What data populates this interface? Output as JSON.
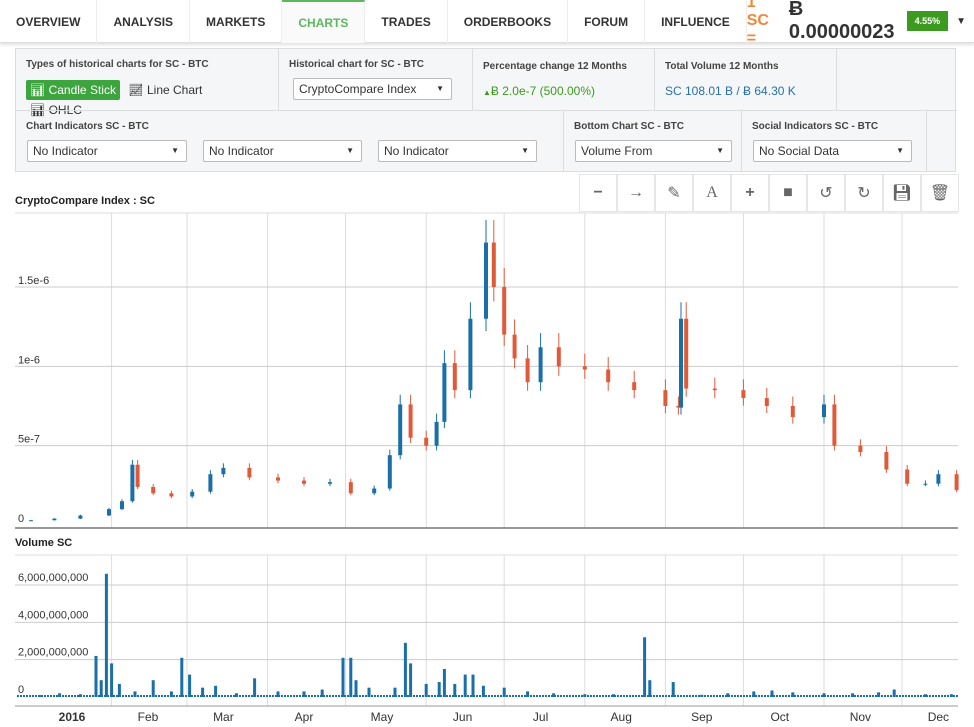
{
  "nav": {
    "tabs": [
      "OVERVIEW",
      "ANALYSIS",
      "MARKETS",
      "CHARTS",
      "TRADES",
      "ORDERBOOKS",
      "FORUM",
      "INFLUENCE"
    ],
    "active": "CHARTS",
    "price_label": "1 SC =",
    "price_value": "Ƀ 0.00000023",
    "change_badge": "4.55%",
    "badge_color": "#3c9a1e"
  },
  "panel": {
    "types_title": "Types of historical charts for SC - BTC",
    "candle": "Candle Stick",
    "line": "Line Chart",
    "ohlc": "OHLC",
    "hist_title": "Historical chart for SC - BTC",
    "hist_value": "CryptoCompare Index",
    "pct_title": "Percentage change 12 Months",
    "pct_value": "Ƀ 2.0e-7 (500.00%)",
    "vol_title": "Total Volume 12 Months",
    "vol_value": "SC 108.01 B / Ƀ 64.30 K",
    "ind_title": "Chart Indicators SC - BTC",
    "ind1": "No Indicator",
    "ind2": "No Indicator",
    "ind3": "No Indicator",
    "bottom_title": "Bottom Chart SC - BTC",
    "bottom_value": "Volume From",
    "social_title": "Social Indicators SC - BTC",
    "social_value": "No Social Data"
  },
  "toolbar": [
    "minus-icon",
    "arrow-right-icon",
    "pencil-icon",
    "text-icon",
    "plus-icon",
    "square-icon",
    "undo-icon",
    "redo-icon",
    "save-icon",
    "trash-icon"
  ],
  "chart_data": [
    {
      "type": "candlestick",
      "title": "CryptoCompare Index : SC",
      "ylim": [
        0,
        1.95e-06
      ],
      "yticks": [
        "0",
        "5e-7",
        "1e-6",
        "1.5e-6"
      ],
      "ytick_values": [
        0,
        5e-07,
        1e-06,
        1.5e-06
      ],
      "up_color": "#1a6fa8",
      "down_color": "#e05a3a",
      "close": [
        [
          "2016-01-01",
          3e-08
        ],
        [
          "2016-01-10",
          4e-08
        ],
        [
          "2016-01-20",
          6e-08
        ],
        [
          "2016-01-31",
          1e-07
        ],
        [
          "2016-02-05",
          1.5e-07
        ],
        [
          "2016-02-09",
          3.8e-07
        ],
        [
          "2016-02-11",
          2.4e-07
        ],
        [
          "2016-02-17",
          2e-07
        ],
        [
          "2016-02-24",
          1.8e-07
        ],
        [
          "2016-03-03",
          2.1e-07
        ],
        [
          "2016-03-10",
          3.2e-07
        ],
        [
          "2016-03-15",
          3.6e-07
        ],
        [
          "2016-03-25",
          3e-07
        ],
        [
          "2016-04-05",
          2.8e-07
        ],
        [
          "2016-04-15",
          2.6e-07
        ],
        [
          "2016-04-25",
          2.7e-07
        ],
        [
          "2016-05-03",
          2e-07
        ],
        [
          "2016-05-12",
          2.3e-07
        ],
        [
          "2016-05-18",
          4.4e-07
        ],
        [
          "2016-05-22",
          7.6e-07
        ],
        [
          "2016-05-26",
          5.5e-07
        ],
        [
          "2016-06-01",
          5e-07
        ],
        [
          "2016-06-05",
          6.5e-07
        ],
        [
          "2016-06-08",
          1.02e-06
        ],
        [
          "2016-06-12",
          8.5e-07
        ],
        [
          "2016-06-18",
          1.3e-06
        ],
        [
          "2016-06-24",
          1.78e-06
        ],
        [
          "2016-06-27",
          1.5e-06
        ],
        [
          "2016-07-01",
          1.2e-06
        ],
        [
          "2016-07-05",
          1.05e-06
        ],
        [
          "2016-07-10",
          9e-07
        ],
        [
          "2016-07-15",
          1.12e-06
        ],
        [
          "2016-07-22",
          1e-06
        ],
        [
          "2016-08-01",
          9.8e-07
        ],
        [
          "2016-08-10",
          9e-07
        ],
        [
          "2016-08-20",
          8.5e-07
        ],
        [
          "2016-09-01",
          7.5e-07
        ],
        [
          "2016-09-06",
          7.4e-07
        ],
        [
          "2016-09-07",
          1.3e-06
        ],
        [
          "2016-09-09",
          8.6e-07
        ],
        [
          "2016-09-20",
          8.5e-07
        ],
        [
          "2016-10-01",
          8e-07
        ],
        [
          "2016-10-10",
          7.5e-07
        ],
        [
          "2016-10-20",
          6.8e-07
        ],
        [
          "2016-11-01",
          7.6e-07
        ],
        [
          "2016-11-05",
          5e-07
        ],
        [
          "2016-11-15",
          4.6e-07
        ],
        [
          "2016-11-25",
          3.5e-07
        ],
        [
          "2016-12-03",
          2.6e-07
        ],
        [
          "2016-12-10",
          2.6e-07
        ],
        [
          "2016-12-15",
          3.2e-07
        ],
        [
          "2016-12-22",
          2.2e-07
        ]
      ]
    },
    {
      "type": "bar",
      "title": "Volume SC",
      "ylim": [
        0,
        7500000000.0
      ],
      "yticks": [
        "0",
        "2,000,000,000",
        "4,000,000,000",
        "6,000,000,000"
      ],
      "ytick_values": [
        0,
        2000000000.0,
        4000000000.0,
        6000000000.0
      ],
      "color": "#1a6fa8",
      "values": [
        [
          "2016-01-05",
          100000000.0
        ],
        [
          "2016-01-12",
          200000000.0
        ],
        [
          "2016-01-20",
          150000000.0
        ],
        [
          "2016-01-26",
          2200000000.0
        ],
        [
          "2016-01-28",
          900000000.0
        ],
        [
          "2016-01-30",
          6600000000.0
        ],
        [
          "2016-02-01",
          1800000000.0
        ],
        [
          "2016-02-04",
          700000000.0
        ],
        [
          "2016-02-10",
          300000000.0
        ],
        [
          "2016-02-17",
          900000000.0
        ],
        [
          "2016-02-24",
          300000000.0
        ],
        [
          "2016-02-28",
          2100000000.0
        ],
        [
          "2016-03-02",
          1200000000.0
        ],
        [
          "2016-03-07",
          500000000.0
        ],
        [
          "2016-03-12",
          600000000.0
        ],
        [
          "2016-03-20",
          200000000.0
        ],
        [
          "2016-03-27",
          1000000000.0
        ],
        [
          "2016-04-05",
          300000000.0
        ],
        [
          "2016-04-15",
          300000000.0
        ],
        [
          "2016-04-22",
          400000000.0
        ],
        [
          "2016-04-30",
          2100000000.0
        ],
        [
          "2016-05-03",
          2100000000.0
        ],
        [
          "2016-05-05",
          900000000.0
        ],
        [
          "2016-05-10",
          500000000.0
        ],
        [
          "2016-05-20",
          500000000.0
        ],
        [
          "2016-05-24",
          2900000000.0
        ],
        [
          "2016-05-26",
          1800000000.0
        ],
        [
          "2016-06-01",
          700000000.0
        ],
        [
          "2016-06-06",
          800000000.0
        ],
        [
          "2016-06-08",
          1500000000.0
        ],
        [
          "2016-06-12",
          700000000.0
        ],
        [
          "2016-06-16",
          1200000000.0
        ],
        [
          "2016-06-19",
          1200000000.0
        ],
        [
          "2016-06-23",
          600000000.0
        ],
        [
          "2016-07-01",
          500000000.0
        ],
        [
          "2016-07-10",
          300000000.0
        ],
        [
          "2016-07-20",
          200000000.0
        ],
        [
          "2016-08-01",
          150000000.0
        ],
        [
          "2016-08-12",
          150000000.0
        ],
        [
          "2016-08-24",
          3200000000.0
        ],
        [
          "2016-08-26",
          900000000.0
        ],
        [
          "2016-09-04",
          800000000.0
        ],
        [
          "2016-09-15",
          120000000.0
        ],
        [
          "2016-09-25",
          200000000.0
        ],
        [
          "2016-10-05",
          300000000.0
        ],
        [
          "2016-10-12",
          350000000.0
        ],
        [
          "2016-10-20",
          250000000.0
        ],
        [
          "2016-11-01",
          200000000.0
        ],
        [
          "2016-11-12",
          200000000.0
        ],
        [
          "2016-11-22",
          250000000.0
        ],
        [
          "2016-11-28",
          400000000.0
        ],
        [
          "2016-12-10",
          150000000.0
        ],
        [
          "2016-12-20",
          150000000.0
        ]
      ]
    }
  ],
  "xaxis": {
    "year": "2016",
    "months": [
      "Feb",
      "Mar",
      "Apr",
      "May",
      "Jun",
      "Jul",
      "Aug",
      "Sep",
      "Oct",
      "Nov",
      "Dec"
    ]
  }
}
